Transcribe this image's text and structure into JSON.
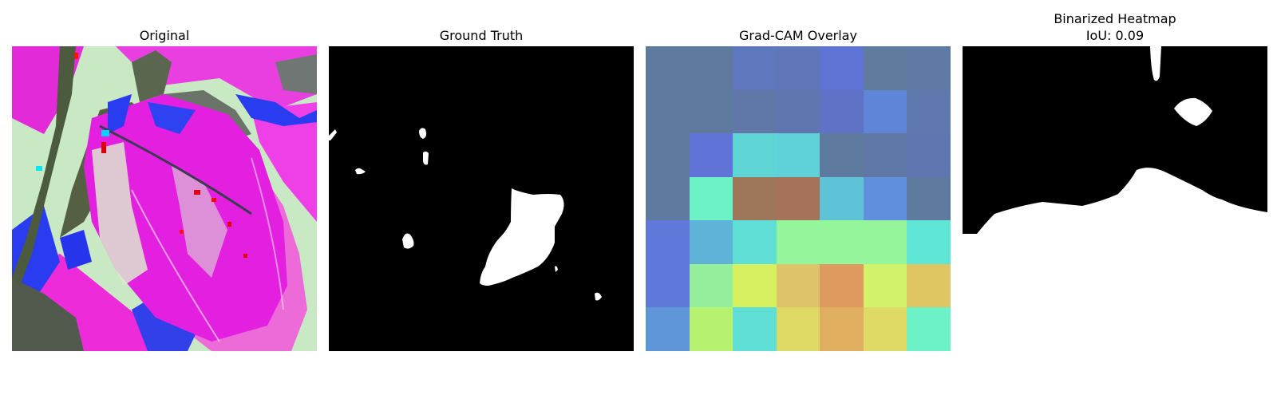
{
  "panels": [
    {
      "title": "Original"
    },
    {
      "title": "Ground Truth"
    },
    {
      "title": "Grad-CAM Overlay"
    },
    {
      "title": "Binarized Heatmap",
      "subtitle": "IoU: 0.09"
    }
  ],
  "gradcam": {
    "grid": [
      [
        "#5f7a9f",
        "#5f7a9f",
        "#5f78bd",
        "#5f76b8",
        "#5f73d5",
        "#5f7c9f",
        "#5f7aa5"
      ],
      [
        "#5f7a9f",
        "#5f7a9f",
        "#5f78a8",
        "#5f76ae",
        "#5f73c6",
        "#5f85d9",
        "#5f78ae"
      ],
      [
        "#5f7a9f",
        "#5f74d6",
        "#5fd5d6",
        "#5fd2d9",
        "#5f7a9f",
        "#5f78a5",
        "#5f77b0"
      ],
      [
        "#5f7a9f",
        "#6df1c6",
        "#9e7659",
        "#a5725a",
        "#5fc3d8",
        "#5f8fdd",
        "#5f7a9f"
      ],
      [
        "#5f78d9",
        "#5fb2d8",
        "#5fdfd6",
        "#94f59b",
        "#94f59b",
        "#94f59b",
        "#5fe6d6"
      ],
      [
        "#5f78d9",
        "#94ee9b",
        "#d5ef5f",
        "#dec36a",
        "#df9b5f",
        "#d2f26b",
        "#dfc564"
      ],
      [
        "#5f96d9",
        "#b6f270",
        "#5fdfd6",
        "#ded865",
        "#dfaf5f",
        "#dfd965",
        "#6df1c6"
      ]
    ]
  },
  "colors": {
    "mask_foreground": "#ffffff",
    "mask_background": "#000000",
    "original_leaf": "#e51ee0",
    "original_background": "#c7e7c3",
    "original_accent_blue": "#2830f0",
    "original_stem": "#4c5a3e"
  }
}
